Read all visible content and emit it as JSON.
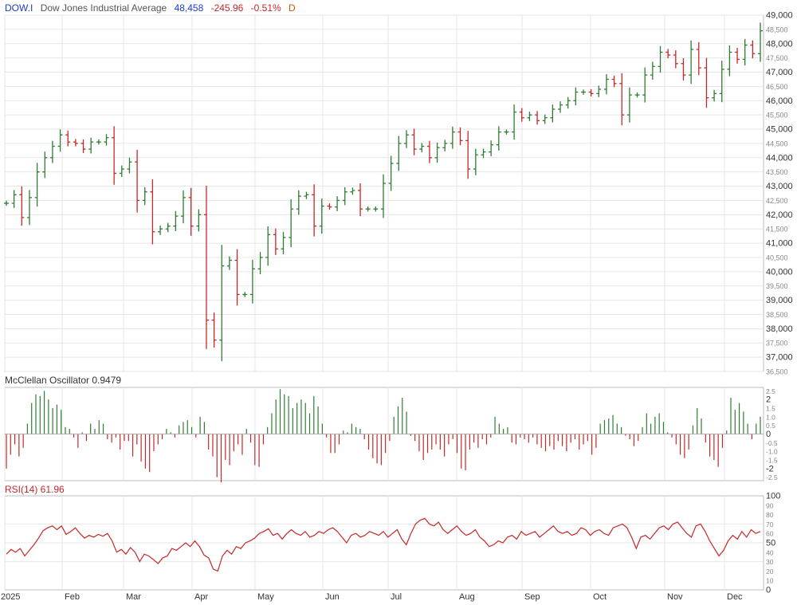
{
  "header": {
    "symbol": "DOW.I",
    "name": "Dow Jones Industrial Average",
    "last": "48,458",
    "change": "-245.96",
    "change_pct": "-0.51%",
    "period": "D"
  },
  "colors": {
    "up": "#2e7d32",
    "down": "#c62828",
    "symbol": "#1a3bd1",
    "grid": "#e6e6e6",
    "frame": "#bdbdbd",
    "rsi_line": "#c62828",
    "label": "#333333"
  },
  "panels": {
    "price": {
      "label": ""
    },
    "mcclellan": {
      "label": "McClellan Oscillator 0.9479"
    },
    "rsi": {
      "label": "RSI(14) 61.96"
    }
  },
  "chart_data": [
    {
      "type": "ohlc",
      "title": "Dow Jones Industrial Average",
      "y_ticks": [
        "49,000",
        "48,500",
        "48,000",
        "47,500",
        "47,000",
        "46,500",
        "46,000",
        "45,500",
        "45,000",
        "44,500",
        "44,000",
        "43,500",
        "43,000",
        "42,500",
        "42,000",
        "41,500",
        "41,000",
        "40,500",
        "40,000",
        "39,500",
        "39,000",
        "38,500",
        "38,000",
        "37,500",
        "37,000",
        "36,500"
      ],
      "ylim": [
        36500,
        49000
      ],
      "x_ticks": [
        "2025",
        "Feb",
        "Mar",
        "Apr",
        "May",
        "Jun",
        "Jul",
        "Aug",
        "Sep",
        "Oct",
        "Nov",
        "Dec"
      ],
      "series": [
        {
          "date": "Jan 2",
          "close": 42400
        },
        {
          "date": "Jan 6",
          "close": 42700
        },
        {
          "date": "Jan 10",
          "close": 41900
        },
        {
          "date": "Jan 14",
          "close": 42600
        },
        {
          "date": "Jan 17",
          "close": 43500
        },
        {
          "date": "Jan 21",
          "close": 44000
        },
        {
          "date": "Jan 24",
          "close": 44400
        },
        {
          "date": "Jan 28",
          "close": 44800
        },
        {
          "date": "Jan 31",
          "close": 44550
        },
        {
          "date": "Feb 4",
          "close": 44500
        },
        {
          "date": "Feb 7",
          "close": 44300
        },
        {
          "date": "Feb 11",
          "close": 44550
        },
        {
          "date": "Feb 14",
          "close": 44550
        },
        {
          "date": "Feb 18",
          "close": 44700
        },
        {
          "date": "Feb 21",
          "close": 43450
        },
        {
          "date": "Feb 25",
          "close": 43600
        },
        {
          "date": "Feb 28",
          "close": 43850
        },
        {
          "date": "Mar 4",
          "close": 42500
        },
        {
          "date": "Mar 7",
          "close": 42800
        },
        {
          "date": "Mar 11",
          "close": 41400
        },
        {
          "date": "Mar 14",
          "close": 41500
        },
        {
          "date": "Mar 18",
          "close": 41600
        },
        {
          "date": "Mar 21",
          "close": 41950
        },
        {
          "date": "Mar 25",
          "close": 42600
        },
        {
          "date": "Mar 28",
          "close": 41600
        },
        {
          "date": "Apr 1",
          "close": 42000
        },
        {
          "date": "Apr 4",
          "close": 38300
        },
        {
          "date": "Apr 8",
          "close": 37600
        },
        {
          "date": "Apr 11",
          "close": 40200
        },
        {
          "date": "Apr 15",
          "close": 40400
        },
        {
          "date": "Apr 18",
          "close": 39200
        },
        {
          "date": "Apr 22",
          "close": 39200
        },
        {
          "date": "Apr 25",
          "close": 40100
        },
        {
          "date": "Apr 29",
          "close": 40500
        },
        {
          "date": "May 2",
          "close": 41300
        },
        {
          "date": "May 6",
          "close": 40800
        },
        {
          "date": "May 9",
          "close": 41200
        },
        {
          "date": "May 13",
          "close": 42200
        },
        {
          "date": "May 16",
          "close": 42650
        },
        {
          "date": "May 20",
          "close": 42700
        },
        {
          "date": "May 23",
          "close": 41600
        },
        {
          "date": "May 27",
          "close": 42300
        },
        {
          "date": "May 30",
          "close": 42270
        },
        {
          "date": "Jun 3",
          "close": 42500
        },
        {
          "date": "Jun 6",
          "close": 42800
        },
        {
          "date": "Jun 10",
          "close": 42850
        },
        {
          "date": "Jun 13",
          "close": 42200
        },
        {
          "date": "Jun 17",
          "close": 42200
        },
        {
          "date": "Jun 20",
          "close": 42200
        },
        {
          "date": "Jun 24",
          "close": 43100
        },
        {
          "date": "Jun 27",
          "close": 43800
        },
        {
          "date": "Jul 1",
          "close": 44500
        },
        {
          "date": "Jul 3",
          "close": 44800
        },
        {
          "date": "Jul 8",
          "close": 44300
        },
        {
          "date": "Jul 11",
          "close": 44400
        },
        {
          "date": "Jul 15",
          "close": 44000
        },
        {
          "date": "Jul 18",
          "close": 44350
        },
        {
          "date": "Jul 22",
          "close": 44500
        },
        {
          "date": "Jul 25",
          "close": 44900
        },
        {
          "date": "Jul 29",
          "close": 44600
        },
        {
          "date": "Aug 1",
          "close": 43600
        },
        {
          "date": "Aug 5",
          "close": 44100
        },
        {
          "date": "Aug 8",
          "close": 44200
        },
        {
          "date": "Aug 12",
          "close": 44450
        },
        {
          "date": "Aug 15",
          "close": 44900
        },
        {
          "date": "Aug 19",
          "close": 44900
        },
        {
          "date": "Aug 22",
          "close": 45600
        },
        {
          "date": "Aug 26",
          "close": 45400
        },
        {
          "date": "Aug 29",
          "close": 45500
        },
        {
          "date": "Sep 3",
          "close": 45300
        },
        {
          "date": "Sep 5",
          "close": 45400
        },
        {
          "date": "Sep 9",
          "close": 45700
        },
        {
          "date": "Sep 12",
          "close": 45850
        },
        {
          "date": "Sep 16",
          "close": 46000
        },
        {
          "date": "Sep 19",
          "close": 46300
        },
        {
          "date": "Sep 23",
          "close": 46300
        },
        {
          "date": "Sep 26",
          "close": 46250
        },
        {
          "date": "Sep 30",
          "close": 46400
        },
        {
          "date": "Oct 3",
          "close": 46750
        },
        {
          "date": "Oct 7",
          "close": 46600
        },
        {
          "date": "Oct 10",
          "close": 45500
        },
        {
          "date": "Oct 14",
          "close": 46200
        },
        {
          "date": "Oct 17",
          "close": 46200
        },
        {
          "date": "Oct 21",
          "close": 46900
        },
        {
          "date": "Oct 24",
          "close": 47200
        },
        {
          "date": "Oct 28",
          "close": 47700
        },
        {
          "date": "Oct 31",
          "close": 47600
        },
        {
          "date": "Nov 4",
          "close": 47300
        },
        {
          "date": "Nov 7",
          "close": 46900
        },
        {
          "date": "Nov 11",
          "close": 47800
        },
        {
          "date": "Nov 14",
          "close": 47150
        },
        {
          "date": "Nov 18",
          "close": 46100
        },
        {
          "date": "Nov 21",
          "close": 46250
        },
        {
          "date": "Nov 25",
          "close": 47100
        },
        {
          "date": "Nov 28",
          "close": 47700
        },
        {
          "date": "Dec 2",
          "close": 47450
        },
        {
          "date": "Dec 5",
          "close": 47950
        },
        {
          "date": "Dec 9",
          "close": 47650
        },
        {
          "date": "Dec 12",
          "close": 48450
        }
      ]
    },
    {
      "type": "bar",
      "title": "McClellan Oscillator 0.9479",
      "y_ticks": [
        "2.5",
        "2",
        "1.5",
        "1.0",
        "0.5",
        "0",
        "-0.5",
        "-1.0",
        "-1.5",
        "-2",
        "-2.5"
      ],
      "ylim": [
        -2.7,
        2.7
      ],
      "values": [
        -2.0,
        -1.2,
        -0.6,
        -1.3,
        -0.8,
        0.6,
        1.8,
        2.3,
        2.2,
        2.5,
        2.0,
        1.5,
        1.7,
        1.4,
        0.4,
        0.3,
        -0.2,
        -0.8,
        0.1,
        -0.4,
        0.6,
        0.3,
        0.8,
        0.6,
        -0.3,
        -0.5,
        -0.2,
        -0.9,
        -0.4,
        -0.4,
        -1.3,
        -0.6,
        -1.6,
        -2.0,
        -2.2,
        -1.0,
        -0.6,
        -0.3,
        0.3,
        0.1,
        -0.2,
        0.5,
        0.7,
        0.8,
        0.4,
        -0.2,
        1.0,
        0.7,
        -0.9,
        -1.3,
        -2.5,
        -2.8,
        -1.5,
        -1.8,
        -1.0,
        -0.6,
        -1.2,
        0.3,
        -0.5,
        -1.8,
        -1.9,
        -0.6,
        0.4,
        1.2,
        2.0,
        2.6,
        2.3,
        2.2,
        1.5,
        1.8,
        2.0,
        1.8,
        1.2,
        2.2,
        1.6,
        0.6,
        -0.2,
        -1.1,
        -1.1,
        -0.6,
        0.2,
        0.1,
        0.6,
        0.4,
        0.3,
        -0.3,
        -0.9,
        -1.4,
        -1.7,
        -1.8,
        -1.1,
        -0.4,
        1.0,
        1.6,
        2.1,
        1.3,
        -0.1,
        -0.4,
        -1.0,
        -1.5,
        -1.1,
        -0.9,
        -0.6,
        -0.9,
        -1.3,
        -0.6,
        -0.3,
        -1.1,
        -2.0,
        -2.1,
        -0.9,
        -0.5,
        -0.8,
        -0.3,
        -0.6,
        -0.2,
        1.0,
        0.6,
        0.3,
        0.4,
        -0.5,
        -0.6,
        -0.2,
        -0.3,
        -0.5,
        -0.2,
        -0.6,
        -0.8,
        -1.0,
        -0.7,
        -0.9,
        -0.4,
        -0.7,
        -1.0,
        -0.5,
        -0.3,
        -0.9,
        -0.6,
        -0.4,
        -1.2,
        -0.8,
        0.6,
        0.8,
        0.9,
        1.1,
        0.6,
        0.4,
        -0.1,
        -0.3,
        -0.7,
        -0.4,
        0.4,
        1.2,
        0.6,
        1.0,
        1.2,
        0.7,
        0.1,
        -0.2,
        -0.6,
        -1.2,
        -1.4,
        -0.9,
        0.5,
        1.5,
        0.9,
        -0.5,
        -1.3,
        -1.5,
        -1.9,
        -0.8,
        0.2,
        2.1,
        1.4,
        1.8,
        1.3,
        0.6,
        -0.3,
        0.6,
        1.0
      ],
      "zero_line": 0
    },
    {
      "type": "line",
      "title": "RSI(14) 61.96",
      "y_ticks": [
        "100",
        "90",
        "80",
        "70",
        "60",
        "50",
        "40",
        "30",
        "20",
        "10",
        "0"
      ],
      "ylim": [
        0,
        100
      ],
      "values": [
        38,
        43,
        40,
        44,
        36,
        42,
        48,
        55,
        63,
        66,
        68,
        64,
        68,
        59,
        62,
        66,
        60,
        55,
        58,
        56,
        59,
        57,
        60,
        52,
        40,
        43,
        38,
        45,
        40,
        30,
        38,
        36,
        32,
        28,
        34,
        36,
        44,
        42,
        46,
        50,
        46,
        52,
        46,
        37,
        34,
        22,
        20,
        36,
        42,
        38,
        46,
        44,
        50,
        52,
        55,
        60,
        62,
        65,
        58,
        60,
        54,
        60,
        64,
        60,
        58,
        62,
        56,
        58,
        62,
        60,
        64,
        66,
        62,
        56,
        50,
        58,
        60,
        56,
        58,
        62,
        60,
        58,
        62,
        56,
        60,
        64,
        54,
        48,
        60,
        70,
        74,
        76,
        70,
        68,
        72,
        64,
        60,
        64,
        68,
        62,
        58,
        60,
        64,
        56,
        52,
        46,
        48,
        52,
        50,
        56,
        58,
        54,
        62,
        58,
        60,
        62,
        56,
        60,
        64,
        68,
        62,
        60,
        62,
        58,
        60,
        66,
        64,
        58,
        62,
        64,
        60,
        58,
        66,
        68,
        70,
        66,
        56,
        44,
        56,
        58,
        54,
        60,
        66,
        68,
        64,
        70,
        72,
        66,
        60,
        56,
        68,
        70,
        62,
        52,
        44,
        36,
        42,
        52,
        58,
        54,
        62,
        56,
        64,
        60,
        62
      ]
    }
  ]
}
